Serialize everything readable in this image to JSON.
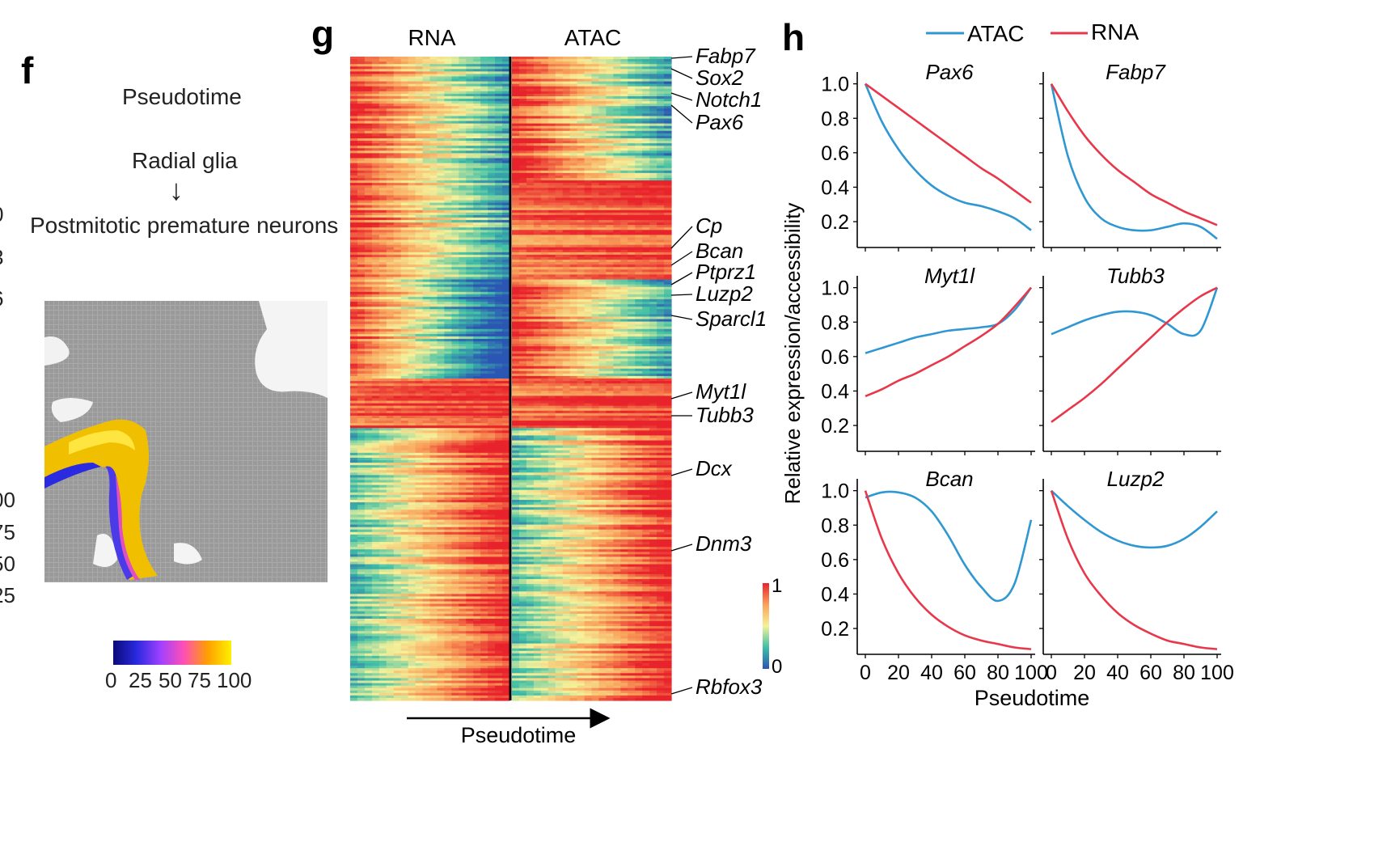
{
  "panels": {
    "f": {
      "letter": "f",
      "title": "Pseudotime",
      "start_label": "Radial glia",
      "arrow_glyph": "↓",
      "end_label": "Postmitotic premature neurons",
      "colorbar_ticks": [
        "0",
        "25",
        "50",
        "75",
        "100"
      ],
      "colorbar_colors": [
        "#0a0a78",
        "#2a2ae0",
        "#a040ff",
        "#ff50b4",
        "#ffa000",
        "#fff000"
      ],
      "edge_fragments_top": [
        "0",
        "3",
        "6"
      ],
      "edge_fragments_bottom": [
        "00",
        "75",
        "50",
        "25"
      ]
    },
    "g": {
      "letter": "g",
      "col_labels": [
        "RNA",
        "ATAC"
      ],
      "genes": [
        "Fabp7",
        "Sox2",
        "Notch1",
        "Pax6",
        "Cp",
        "Bcan",
        "Ptprz1",
        "Luzp2",
        "Sparcl1",
        "Myt1l",
        "Tubb3",
        "Dcx",
        "Dnm3",
        "Rbfox3"
      ],
      "xlabel": "Pseudotime",
      "colorbar_max": "1",
      "colorbar_min": "0",
      "colorbar_colors": [
        "#2b56b3",
        "#3fbfa6",
        "#f5f19a",
        "#f9a25b",
        "#e8232b"
      ]
    },
    "h": {
      "letter": "h",
      "legend": [
        "ATAC",
        "RNA"
      ],
      "xlabel": "Pseudotime",
      "ylabel": "Relative expression/accessibility",
      "colors": {
        "ATAC": "#2f97d1",
        "RNA": "#e8374a"
      }
    }
  },
  "chart_data": [
    {
      "type": "heatmap",
      "panel": "g",
      "columns": [
        "RNA",
        "ATAC"
      ],
      "x": "Pseudotime",
      "value_range": [
        0,
        1
      ],
      "gene_labels": [
        "Fabp7",
        "Sox2",
        "Notch1",
        "Pax6",
        "Cp",
        "Bcan",
        "Ptprz1",
        "Luzp2",
        "Sparcl1",
        "Myt1l",
        "Tubb3",
        "Dcx",
        "Dnm3",
        "Rbfox3"
      ],
      "blocks": [
        {
          "rows": 50,
          "rna_trend": "decreasing",
          "atac_trend": "decreasing"
        },
        {
          "rows": 40,
          "rna_trend": "decreasing",
          "atac_trend": "high"
        },
        {
          "rows": 40,
          "rna_trend": "decreasing_low",
          "atac_trend": "decreasing"
        },
        {
          "rows": 20,
          "rna_trend": "high",
          "atac_trend": "high"
        },
        {
          "rows": 110,
          "rna_trend": "increasing",
          "atac_trend": "increasing"
        }
      ]
    },
    {
      "type": "line",
      "panel": "h",
      "xlim": [
        0,
        100
      ],
      "ylim": [
        0.05,
        1.05
      ],
      "xticks": [
        0,
        20,
        40,
        60,
        80,
        100
      ],
      "yticks": [
        0.2,
        0.4,
        0.6,
        0.8,
        1.0
      ],
      "subplots": [
        {
          "title": "Pax6",
          "x": [
            0,
            10,
            20,
            30,
            40,
            50,
            60,
            70,
            80,
            90,
            100
          ],
          "series": [
            {
              "name": "ATAC",
              "values": [
                1.0,
                0.78,
                0.62,
                0.5,
                0.41,
                0.35,
                0.31,
                0.29,
                0.26,
                0.22,
                0.15
              ]
            },
            {
              "name": "RNA",
              "values": [
                1.0,
                0.93,
                0.86,
                0.79,
                0.72,
                0.65,
                0.58,
                0.51,
                0.45,
                0.38,
                0.31
              ]
            }
          ]
        },
        {
          "title": "Fabp7",
          "x": [
            0,
            10,
            20,
            30,
            40,
            50,
            60,
            70,
            80,
            90,
            100
          ],
          "series": [
            {
              "name": "ATAC",
              "values": [
                1.0,
                0.58,
                0.34,
                0.22,
                0.17,
                0.15,
                0.15,
                0.17,
                0.19,
                0.17,
                0.1
              ]
            },
            {
              "name": "RNA",
              "values": [
                1.0,
                0.84,
                0.7,
                0.59,
                0.5,
                0.43,
                0.36,
                0.31,
                0.26,
                0.22,
                0.18
              ]
            }
          ]
        },
        {
          "title": "Myt1l",
          "x": [
            0,
            10,
            20,
            30,
            40,
            50,
            60,
            70,
            80,
            90,
            100
          ],
          "series": [
            {
              "name": "ATAC",
              "values": [
                0.62,
                0.65,
                0.68,
                0.71,
                0.73,
                0.75,
                0.76,
                0.77,
                0.79,
                0.87,
                1.0
              ]
            },
            {
              "name": "RNA",
              "values": [
                0.37,
                0.41,
                0.46,
                0.5,
                0.55,
                0.6,
                0.66,
                0.72,
                0.79,
                0.89,
                1.0
              ]
            }
          ]
        },
        {
          "title": "Tubb3",
          "x": [
            0,
            10,
            20,
            30,
            40,
            50,
            60,
            70,
            80,
            90,
            100
          ],
          "series": [
            {
              "name": "ATAC",
              "values": [
                0.73,
                0.77,
                0.81,
                0.84,
                0.86,
                0.86,
                0.84,
                0.79,
                0.73,
                0.75,
                1.0
              ]
            },
            {
              "name": "RNA",
              "values": [
                0.22,
                0.29,
                0.36,
                0.44,
                0.53,
                0.62,
                0.71,
                0.8,
                0.88,
                0.95,
                1.0
              ]
            }
          ]
        },
        {
          "title": "Bcan",
          "x": [
            0,
            10,
            20,
            30,
            40,
            50,
            60,
            70,
            80,
            90,
            100
          ],
          "series": [
            {
              "name": "ATAC",
              "values": [
                0.96,
                0.99,
                0.99,
                0.96,
                0.88,
                0.74,
                0.57,
                0.44,
                0.36,
                0.46,
                0.83
              ]
            },
            {
              "name": "RNA",
              "values": [
                1.0,
                0.72,
                0.52,
                0.38,
                0.28,
                0.21,
                0.16,
                0.13,
                0.11,
                0.09,
                0.08
              ]
            }
          ]
        },
        {
          "title": "Luzp2",
          "x": [
            0,
            10,
            20,
            30,
            40,
            50,
            60,
            70,
            80,
            90,
            100
          ],
          "series": [
            {
              "name": "ATAC",
              "values": [
                1.0,
                0.91,
                0.83,
                0.76,
                0.71,
                0.68,
                0.67,
                0.68,
                0.72,
                0.79,
                0.88
              ]
            },
            {
              "name": "RNA",
              "values": [
                1.0,
                0.72,
                0.52,
                0.39,
                0.29,
                0.22,
                0.17,
                0.13,
                0.11,
                0.09,
                0.08
              ]
            }
          ]
        }
      ]
    }
  ]
}
